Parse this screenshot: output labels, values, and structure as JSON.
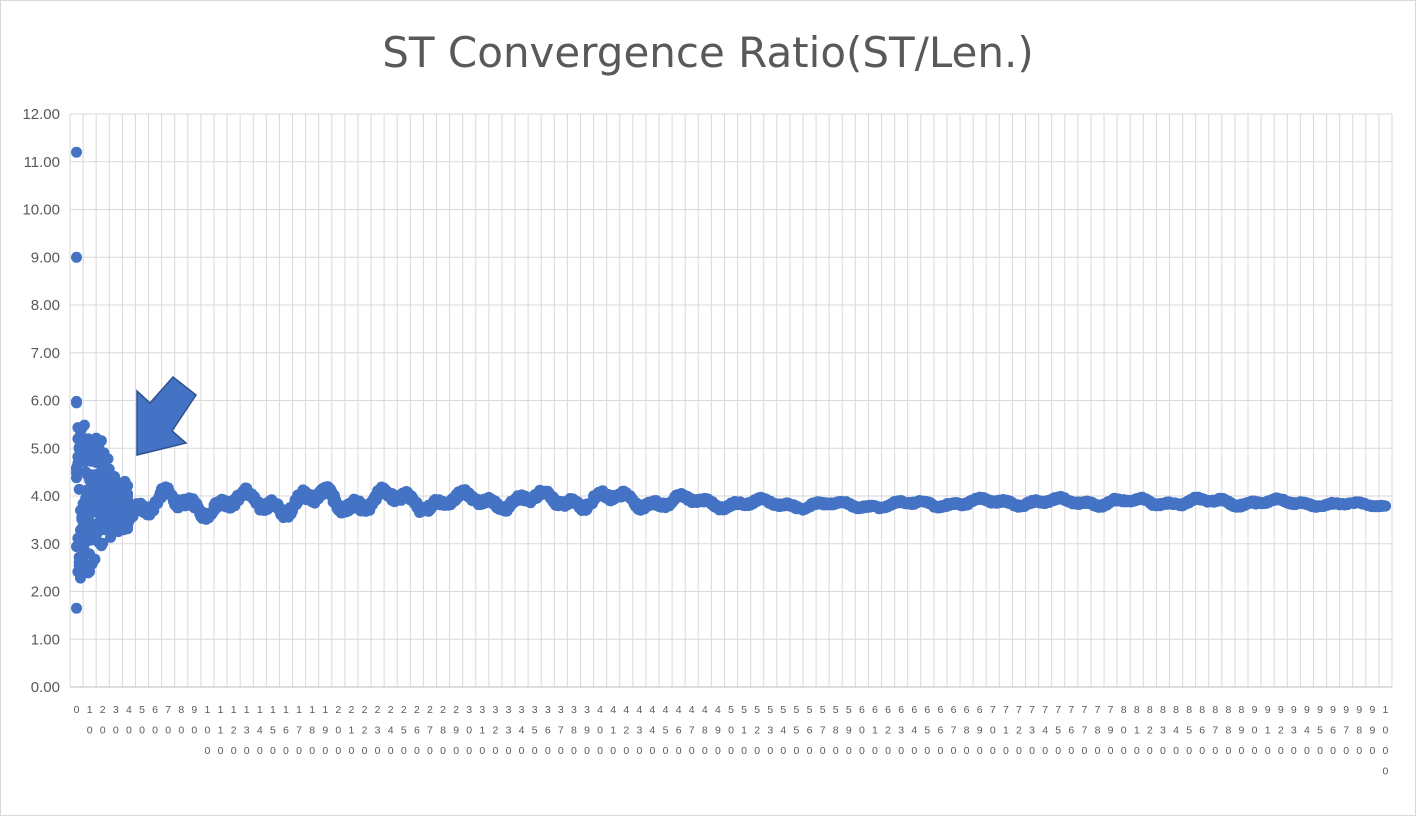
{
  "chart_data": {
    "type": "scatter",
    "title": "ST Convergence Ratio(ST/Len.)",
    "xlabel": "",
    "ylabel": "",
    "ylim": [
      0,
      12
    ],
    "y_ticks": [
      "0.00",
      "1.00",
      "2.00",
      "3.00",
      "4.00",
      "5.00",
      "6.00",
      "7.00",
      "8.00",
      "9.00",
      "10.00",
      "11.00",
      "12.00"
    ],
    "x_categories": [
      "0",
      "10",
      "20",
      "30",
      "40",
      "50",
      "60",
      "70",
      "80",
      "90",
      "100",
      "110",
      "120",
      "130",
      "140",
      "150",
      "160",
      "170",
      "180",
      "190",
      "200",
      "210",
      "220",
      "230",
      "240",
      "250",
      "260",
      "270",
      "280",
      "290",
      "300",
      "310",
      "320",
      "330",
      "340",
      "350",
      "360",
      "370",
      "380",
      "390",
      "400",
      "410",
      "420",
      "430",
      "440",
      "450",
      "460",
      "470",
      "480",
      "490",
      "500",
      "510",
      "520",
      "530",
      "540",
      "550",
      "560",
      "570",
      "580",
      "590",
      "600",
      "610",
      "620",
      "630",
      "640",
      "650",
      "660",
      "670",
      "680",
      "690",
      "700",
      "710",
      "720",
      "730",
      "740",
      "750",
      "760",
      "770",
      "780",
      "790",
      "800",
      "810",
      "820",
      "830",
      "840",
      "850",
      "860",
      "870",
      "880",
      "890",
      "900",
      "910",
      "920",
      "930",
      "940",
      "950",
      "960",
      "970",
      "980",
      "990",
      "1000"
    ],
    "grid": true,
    "legend": "none",
    "marker_color": "#4472c4",
    "annotation": "arrow pointing at the cluster near x≈30–40",
    "notable_points": [
      {
        "x": 0,
        "y": 11.2
      },
      {
        "x": 0,
        "y": 9.0
      },
      {
        "x": 0,
        "y": 5.95
      },
      {
        "x": 0,
        "y": 1.65
      }
    ],
    "series_trend": [
      {
        "x": 0,
        "y_min": 1.6,
        "y_max": 6.0
      },
      {
        "x": 10,
        "y_min": 2.4,
        "y_max": 5.3
      },
      {
        "x": 20,
        "y_min": 3.0,
        "y_max": 5.15
      },
      {
        "x": 30,
        "y_min": 3.2,
        "y_max": 4.35
      },
      {
        "x": 50,
        "y_min": 3.4,
        "y_max": 4.25
      },
      {
        "x": 100,
        "y_min": 3.5,
        "y_max": 4.15
      },
      {
        "x": 200,
        "y_min": 3.5,
        "y_max": 4.3
      },
      {
        "x": 300,
        "y_min": 3.65,
        "y_max": 4.15
      },
      {
        "x": 400,
        "y_min": 3.65,
        "y_max": 4.2
      },
      {
        "x": 500,
        "y_min": 3.7,
        "y_max": 4.0
      },
      {
        "x": 600,
        "y_min": 3.7,
        "y_max": 3.9
      },
      {
        "x": 700,
        "y_min": 3.75,
        "y_max": 4.0
      },
      {
        "x": 800,
        "y_min": 3.75,
        "y_max": 4.0
      },
      {
        "x": 900,
        "y_min": 3.75,
        "y_max": 4.0
      },
      {
        "x": 1000,
        "y_min": 3.75,
        "y_max": 3.85
      }
    ]
  }
}
